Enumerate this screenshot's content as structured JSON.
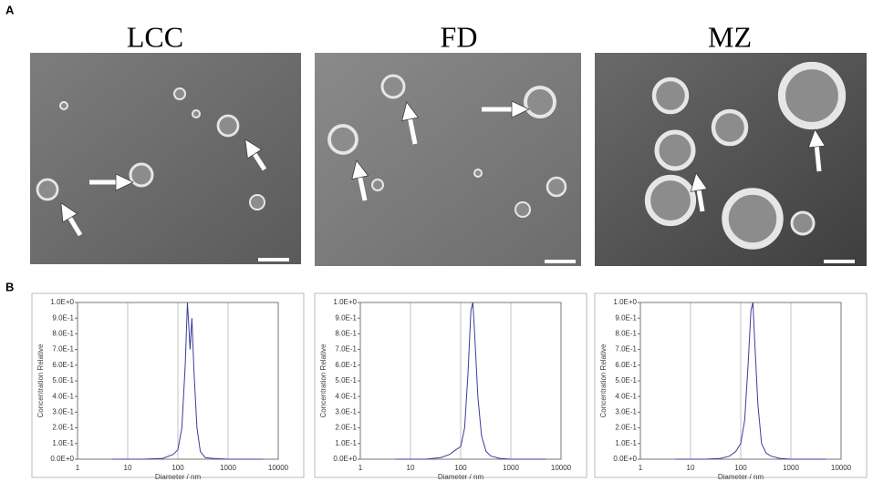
{
  "panel_a": {
    "label": "A",
    "images": [
      {
        "title": "LCC"
      },
      {
        "title": "FD"
      },
      {
        "title": "MZ"
      }
    ]
  },
  "panel_b": {
    "label": "B"
  },
  "chart_data": [
    {
      "type": "line",
      "xscale": "log",
      "xlabel": "Diameter / nm",
      "ylabel": "Concentration Relative",
      "color": "#3c3c9c",
      "grid": true,
      "xlim": [
        1,
        10000
      ],
      "xticks": [
        1,
        10,
        100,
        1000,
        10000
      ],
      "ylim": [
        0,
        1
      ],
      "yticks": [
        {
          "value": 0,
          "label": "0.0E+0"
        },
        {
          "value": 0.1,
          "label": "1.0E-1"
        },
        {
          "value": 0.2,
          "label": "2.0E-1"
        },
        {
          "value": 0.3,
          "label": "3.0E-1"
        },
        {
          "value": 0.4,
          "label": "4.0E-1"
        },
        {
          "value": 0.5,
          "label": "5.0E-1"
        },
        {
          "value": 0.6,
          "label": "6.0E-1"
        },
        {
          "value": 0.7,
          "label": "7.0E-1"
        },
        {
          "value": 0.8,
          "label": "8.0E-1"
        },
        {
          "value": 0.9,
          "label": "9.0E-1"
        },
        {
          "value": 1,
          "label": "1.0E+0"
        }
      ],
      "x": [
        5,
        20,
        50,
        80,
        100,
        120,
        140,
        155,
        165,
        175,
        190,
        210,
        240,
        280,
        350,
        500,
        1000,
        5000
      ],
      "values": [
        0,
        0,
        0.005,
        0.03,
        0.06,
        0.2,
        0.6,
        1.0,
        0.85,
        0.7,
        0.9,
        0.55,
        0.2,
        0.05,
        0.01,
        0.005,
        0,
        0
      ]
    },
    {
      "type": "line",
      "xscale": "log",
      "xlabel": "Diameter / nm",
      "ylabel": "Concentration Relative",
      "color": "#3c3c9c",
      "grid": true,
      "xlim": [
        1,
        10000
      ],
      "xticks": [
        1,
        10,
        100,
        1000,
        10000
      ],
      "ylim": [
        0,
        1
      ],
      "yticks": [
        {
          "value": 0,
          "label": "0.0E+0"
        },
        {
          "value": 0.1,
          "label": "1.0E-1"
        },
        {
          "value": 0.2,
          "label": "2.0E-1"
        },
        {
          "value": 0.3,
          "label": "3.0E-1"
        },
        {
          "value": 0.4,
          "label": "4.0E-1"
        },
        {
          "value": 0.5,
          "label": "5.0E-1"
        },
        {
          "value": 0.6,
          "label": "6.0E-1"
        },
        {
          "value": 0.7,
          "label": "7.0E-1"
        },
        {
          "value": 0.8,
          "label": "8.0E-1"
        },
        {
          "value": 0.9,
          "label": "9.0E-1"
        },
        {
          "value": 1,
          "label": "1.0E+0"
        }
      ],
      "x": [
        5,
        20,
        40,
        60,
        80,
        100,
        120,
        140,
        160,
        175,
        190,
        220,
        260,
        320,
        400,
        600,
        1000,
        5000
      ],
      "values": [
        0,
        0,
        0.01,
        0.03,
        0.06,
        0.08,
        0.2,
        0.55,
        0.95,
        1.0,
        0.8,
        0.4,
        0.15,
        0.05,
        0.02,
        0.005,
        0,
        0
      ]
    },
    {
      "type": "line",
      "xscale": "log",
      "xlabel": "Diameter / nm",
      "ylabel": "Concentration Relative",
      "color": "#3c3c9c",
      "grid": true,
      "xlim": [
        1,
        10000
      ],
      "xticks": [
        1,
        10,
        100,
        1000,
        10000
      ],
      "ylim": [
        0,
        1
      ],
      "yticks": [
        {
          "value": 0,
          "label": "0.0E+0"
        },
        {
          "value": 0.1,
          "label": "1.0E-1"
        },
        {
          "value": 0.2,
          "label": "2.0E-1"
        },
        {
          "value": 0.3,
          "label": "3.0E-1"
        },
        {
          "value": 0.4,
          "label": "4.0E-1"
        },
        {
          "value": 0.5,
          "label": "5.0E-1"
        },
        {
          "value": 0.6,
          "label": "6.0E-1"
        },
        {
          "value": 0.7,
          "label": "7.0E-1"
        },
        {
          "value": 0.8,
          "label": "8.0E-1"
        },
        {
          "value": 0.9,
          "label": "9.0E-1"
        },
        {
          "value": 1,
          "label": "1.0E+0"
        }
      ],
      "x": [
        5,
        20,
        40,
        60,
        80,
        100,
        120,
        140,
        160,
        175,
        190,
        220,
        260,
        320,
        400,
        600,
        1000,
        5000
      ],
      "values": [
        0,
        0,
        0.005,
        0.02,
        0.05,
        0.1,
        0.25,
        0.6,
        0.95,
        1.0,
        0.75,
        0.35,
        0.1,
        0.04,
        0.02,
        0.005,
        0,
        0
      ]
    }
  ]
}
